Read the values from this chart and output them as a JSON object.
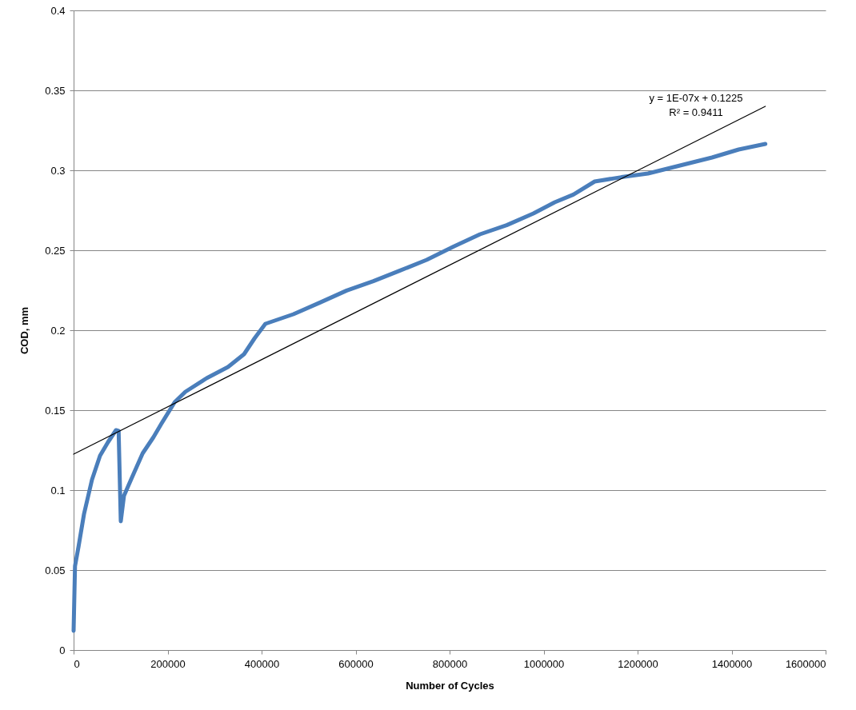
{
  "chart_data": {
    "type": "line",
    "xlabel": "Number of Cycles",
    "ylabel": "COD, mm",
    "xlim": [
      0,
      1600000
    ],
    "xticks": [
      0,
      200000,
      400000,
      600000,
      800000,
      1000000,
      1200000,
      1400000,
      1600000
    ],
    "ylim": [
      0,
      0.4
    ],
    "yticks": [
      0,
      0.05,
      0.1,
      0.15,
      0.2,
      0.25,
      0.3,
      0.35,
      0.4
    ],
    "grid": "y",
    "series": [
      {
        "color": "#4a7ebb",
        "x": [
          0,
          3000,
          10700,
          22100,
          39100,
          56200,
          73200,
          90200,
          95800,
          100400,
          107200,
          124300,
          146900,
          169700,
          186700,
          215000,
          237800,
          283000,
          328500,
          362600,
          385200,
          408000,
          467600,
          524300,
          581000,
          637800,
          694500,
          751200,
          808000,
          864700,
          921400,
          978200,
          1023600,
          1063300,
          1108700,
          1165400,
          1222100,
          1290200,
          1358300,
          1415000,
          1471800
        ],
        "values": [
          0.012,
          0.0525,
          0.065,
          0.085,
          0.1065,
          0.1215,
          0.13,
          0.1375,
          0.137,
          0.0805,
          0.0965,
          0.108,
          0.123,
          0.133,
          0.1415,
          0.155,
          0.1615,
          0.17,
          0.177,
          0.185,
          0.195,
          0.204,
          0.21,
          0.2173,
          0.2248,
          0.2307,
          0.2373,
          0.244,
          0.2523,
          0.26,
          0.2657,
          0.273,
          0.28,
          0.2848,
          0.293,
          0.2957,
          0.298,
          0.303,
          0.308,
          0.313,
          0.3165
        ]
      },
      {
        "type": "line",
        "color": "#000000",
        "x": [
          0,
          1471800
        ],
        "values": [
          0.1225,
          0.34
        ]
      }
    ],
    "annotations": [
      "y = 1E-07x + 0.1225",
      "R² = 0.9411"
    ]
  }
}
